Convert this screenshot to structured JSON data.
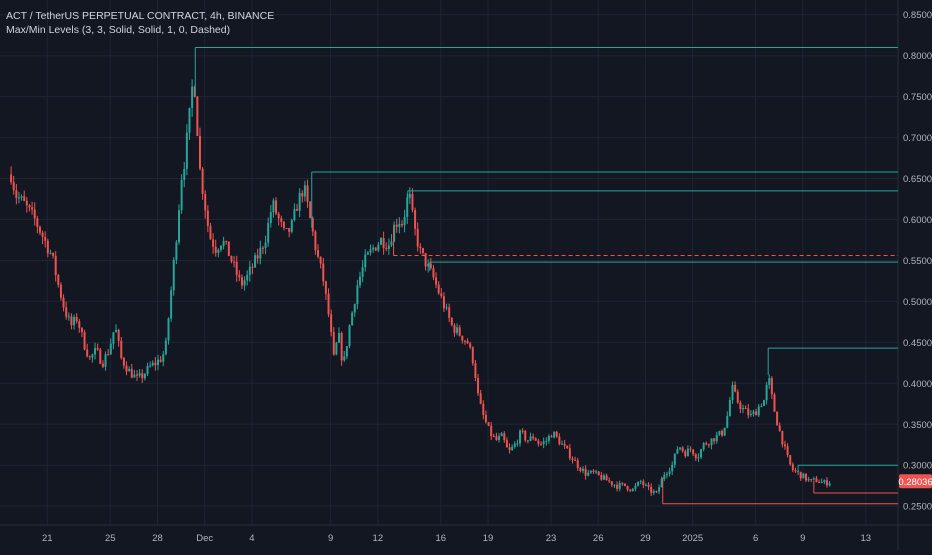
{
  "header": {
    "symbol_line": "ACT / TetherUS PERPETUAL CONTRACT, 4h, BINANCE",
    "indicator_line": "Max/Min Levels (3, 3, Solid, Solid, 1, 0, Dashed)"
  },
  "colors": {
    "background": "#131722",
    "grid": "#1f2433",
    "up": "#26a69a",
    "down": "#ef5350",
    "text": "#b2b5be",
    "price_badge": "#ef5350"
  },
  "chart_data": {
    "type": "candlestick",
    "symbol": "ACT / TetherUS PERPETUAL CONTRACT",
    "timeframe": "4h",
    "exchange": "BINANCE",
    "x_tick_labels": [
      "21",
      "25",
      "28",
      "Dec",
      "4",
      "9",
      "12",
      "16",
      "19",
      "23",
      "26",
      "29",
      "2025",
      "6",
      "9",
      "13"
    ],
    "y_ticks": [
      "0.85000",
      "0.80000",
      "0.75000",
      "0.70000",
      "0.65000",
      "0.60000",
      "0.55000",
      "0.50000",
      "0.45000",
      "0.40000",
      "0.35000",
      "0.30000",
      "0.25000"
    ],
    "ylim": [
      0.227,
      0.868
    ],
    "grid": true,
    "last_price": "0.28036",
    "price_path": [
      [
        0,
        0.655
      ],
      [
        0.3,
        0.63
      ],
      [
        0.8,
        0.62
      ],
      [
        1.5,
        0.6
      ],
      [
        2.0,
        0.58
      ],
      [
        2.6,
        0.555
      ],
      [
        3.0,
        0.52
      ],
      [
        3.4,
        0.49
      ],
      [
        3.8,
        0.47
      ],
      [
        4.2,
        0.48
      ],
      [
        4.6,
        0.45
      ],
      [
        5.0,
        0.43
      ],
      [
        5.4,
        0.44
      ],
      [
        5.8,
        0.425
      ],
      [
        6.2,
        0.44
      ],
      [
        6.6,
        0.47
      ],
      [
        7.0,
        0.43
      ],
      [
        7.5,
        0.415
      ],
      [
        8.0,
        0.405
      ],
      [
        8.4,
        0.41
      ],
      [
        8.8,
        0.42
      ],
      [
        9.2,
        0.425
      ],
      [
        9.5,
        0.43
      ],
      [
        9.8,
        0.44
      ],
      [
        10.0,
        0.48
      ],
      [
        10.2,
        0.52
      ],
      [
        10.4,
        0.56
      ],
      [
        10.6,
        0.6
      ],
      [
        10.8,
        0.65
      ],
      [
        11.0,
        0.67
      ],
      [
        11.3,
        0.72
      ],
      [
        11.6,
        0.78
      ],
      [
        11.8,
        0.72
      ],
      [
        12.0,
        0.66
      ],
      [
        12.3,
        0.62
      ],
      [
        12.6,
        0.58
      ],
      [
        13.0,
        0.565
      ],
      [
        13.4,
        0.575
      ],
      [
        13.8,
        0.56
      ],
      [
        14.2,
        0.54
      ],
      [
        14.6,
        0.52
      ],
      [
        15.0,
        0.53
      ],
      [
        15.4,
        0.545
      ],
      [
        15.8,
        0.56
      ],
      [
        16.2,
        0.58
      ],
      [
        16.6,
        0.62
      ],
      [
        17.0,
        0.6
      ],
      [
        17.4,
        0.58
      ],
      [
        17.8,
        0.59
      ],
      [
        18.2,
        0.62
      ],
      [
        18.6,
        0.64
      ],
      [
        19.0,
        0.6
      ],
      [
        19.4,
        0.56
      ],
      [
        19.8,
        0.53
      ],
      [
        20.2,
        0.48
      ],
      [
        20.5,
        0.43
      ],
      [
        20.8,
        0.46
      ],
      [
        21.1,
        0.42
      ],
      [
        21.5,
        0.47
      ],
      [
        22.0,
        0.52
      ],
      [
        22.5,
        0.55
      ],
      [
        23.0,
        0.565
      ],
      [
        23.5,
        0.575
      ],
      [
        24.0,
        0.57
      ],
      [
        24.3,
        0.59
      ],
      [
        24.6,
        0.6
      ],
      [
        24.9,
        0.595
      ],
      [
        25.1,
        0.62
      ],
      [
        25.3,
        0.63
      ],
      [
        25.6,
        0.59
      ],
      [
        26.0,
        0.56
      ],
      [
        26.4,
        0.545
      ],
      [
        26.8,
        0.53
      ],
      [
        27.2,
        0.51
      ],
      [
        27.6,
        0.49
      ],
      [
        28.0,
        0.47
      ],
      [
        28.5,
        0.46
      ],
      [
        29.0,
        0.45
      ],
      [
        29.4,
        0.425
      ],
      [
        29.7,
        0.38
      ],
      [
        30.0,
        0.36
      ],
      [
        30.4,
        0.34
      ],
      [
        30.8,
        0.33
      ],
      [
        31.2,
        0.335
      ],
      [
        31.6,
        0.315
      ],
      [
        32.0,
        0.325
      ],
      [
        32.4,
        0.34
      ],
      [
        32.8,
        0.33
      ],
      [
        33.2,
        0.335
      ],
      [
        33.6,
        0.325
      ],
      [
        34.0,
        0.33
      ],
      [
        34.4,
        0.34
      ],
      [
        34.8,
        0.33
      ],
      [
        35.2,
        0.32
      ],
      [
        35.6,
        0.31
      ],
      [
        36.0,
        0.3
      ],
      [
        36.5,
        0.29
      ],
      [
        37.0,
        0.29
      ],
      [
        37.5,
        0.285
      ],
      [
        38.0,
        0.28
      ],
      [
        38.5,
        0.275
      ],
      [
        39.0,
        0.275
      ],
      [
        39.5,
        0.27
      ],
      [
        40.0,
        0.28
      ],
      [
        40.5,
        0.27
      ],
      [
        41.0,
        0.265
      ],
      [
        41.5,
        0.29
      ],
      [
        42.0,
        0.3
      ],
      [
        42.4,
        0.325
      ],
      [
        42.8,
        0.315
      ],
      [
        43.2,
        0.32
      ],
      [
        43.6,
        0.31
      ],
      [
        44.0,
        0.325
      ],
      [
        44.4,
        0.33
      ],
      [
        44.8,
        0.335
      ],
      [
        45.2,
        0.34
      ],
      [
        45.5,
        0.36
      ],
      [
        45.8,
        0.395
      ],
      [
        46.1,
        0.38
      ],
      [
        46.4,
        0.37
      ],
      [
        46.7,
        0.365
      ],
      [
        47.0,
        0.36
      ],
      [
        47.3,
        0.365
      ],
      [
        47.6,
        0.375
      ],
      [
        47.9,
        0.38
      ],
      [
        48.1,
        0.41
      ],
      [
        48.4,
        0.375
      ],
      [
        48.7,
        0.35
      ],
      [
        49.0,
        0.33
      ],
      [
        49.3,
        0.31
      ],
      [
        49.6,
        0.295
      ],
      [
        50.0,
        0.29
      ],
      [
        50.4,
        0.285
      ],
      [
        50.8,
        0.28
      ],
      [
        51.2,
        0.282
      ],
      [
        51.6,
        0.278
      ],
      [
        52.0,
        0.28
      ]
    ],
    "levels": [
      {
        "kind": "max",
        "x_start": 11.7,
        "price": 0.81
      },
      {
        "kind": "max",
        "x_start": 19.1,
        "price": 0.658
      },
      {
        "kind": "max",
        "x_start": 25.2,
        "price": 0.635
      },
      {
        "kind": "min",
        "x_start": 24.3,
        "price": 0.556,
        "style": "dashed"
      },
      {
        "kind": "max",
        "x_start": 26.6,
        "price": 0.548
      },
      {
        "kind": "max",
        "x_start": 48.1,
        "price": 0.443
      },
      {
        "kind": "max",
        "x_start": 50.0,
        "price": 0.3
      },
      {
        "kind": "min",
        "x_start": 41.4,
        "price": 0.253
      },
      {
        "kind": "min",
        "x_start": 51.0,
        "price": 0.266
      }
    ]
  }
}
